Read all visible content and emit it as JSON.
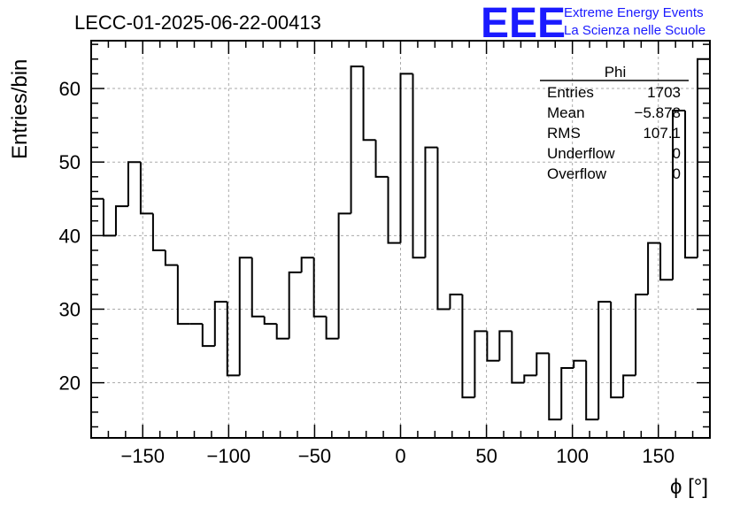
{
  "branding": {
    "logo_text": "EEE",
    "line1": "Extreme Energy Events",
    "line2": "La Scienza nelle Scuole",
    "color": "#1a1aff"
  },
  "chart_data": {
    "type": "histogram",
    "title": "LECC-01-2025-06-22-00413",
    "xlabel": "ϕ [°]",
    "ylabel": "Entries/bin",
    "xlim": [
      -180,
      180
    ],
    "ylim": [
      12.5,
      66.5
    ],
    "bin_width": 7.2,
    "x_ticks": [
      -150,
      -100,
      -50,
      0,
      50,
      100,
      150
    ],
    "x_tick_labels": [
      "−150",
      "−100",
      "−50",
      "0",
      "50",
      "100",
      "150"
    ],
    "y_ticks": [
      20,
      30,
      40,
      50,
      60
    ],
    "y_tick_labels": [
      "20",
      "30",
      "40",
      "50",
      "60"
    ],
    "grid": true,
    "values": [
      45,
      40,
      44,
      50,
      43,
      38,
      36,
      28,
      28,
      25,
      31,
      21,
      37,
      29,
      28,
      26,
      35,
      37,
      29,
      26,
      43,
      63,
      53,
      48,
      39,
      62,
      37,
      52,
      30,
      32,
      18,
      27,
      23,
      27,
      20,
      21,
      24,
      15,
      22,
      23,
      15,
      31,
      18,
      21,
      32,
      39,
      34,
      57,
      37,
      64
    ],
    "stats": {
      "name": "Phi",
      "rows": [
        {
          "label": "Entries",
          "value": "1703"
        },
        {
          "label": "Mean",
          "value": "−5.878"
        },
        {
          "label": "RMS",
          "value": "107.1"
        },
        {
          "label": "Underflow",
          "value": "0"
        },
        {
          "label": "Overflow",
          "value": "0"
        }
      ]
    },
    "colors": {
      "line": "#000000",
      "grid": "#aaaaaa"
    }
  }
}
